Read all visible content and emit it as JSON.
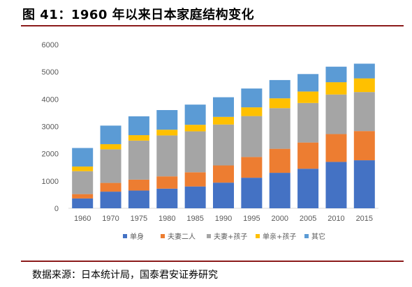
{
  "figure": {
    "title": "图 41：1960 年以来日本家庭结构变化",
    "source": "数据来源：日本统计局，国泰君安证券研究"
  },
  "colors": {
    "rule": "#8b1a1a",
    "series": [
      "#4472c4",
      "#ed7d31",
      "#a5a5a5",
      "#ffc000",
      "#5b9bd5"
    ]
  },
  "chart_data": {
    "type": "bar",
    "stacked": true,
    "categories": [
      "1960",
      "1970",
      "1975",
      "1980",
      "1985",
      "1990",
      "1995",
      "2000",
      "2005",
      "2010",
      "2015"
    ],
    "series": [
      {
        "name": "单身",
        "values": [
          360,
          610,
          650,
          720,
          800,
          940,
          1120,
          1300,
          1450,
          1700,
          1760
        ]
      },
      {
        "name": "夫妻二人",
        "values": [
          160,
          320,
          400,
          450,
          520,
          630,
          760,
          880,
          960,
          1020,
          1070
        ]
      },
      {
        "name": "夫妻+孩子",
        "values": [
          840,
          1230,
          1430,
          1500,
          1500,
          1500,
          1500,
          1490,
          1450,
          1450,
          1430
        ]
      },
      {
        "name": "单亲+孩子",
        "values": [
          170,
          190,
          200,
          210,
          240,
          280,
          320,
          360,
          420,
          450,
          500
        ]
      },
      {
        "name": "其它",
        "values": [
          680,
          680,
          690,
          720,
          740,
          720,
          690,
          670,
          640,
          570,
          540
        ]
      }
    ],
    "ylim": [
      0,
      6000
    ],
    "yticks": [
      0,
      1000,
      2000,
      3000,
      4000,
      5000,
      6000
    ],
    "grid": false,
    "legend_position": "bottom"
  }
}
